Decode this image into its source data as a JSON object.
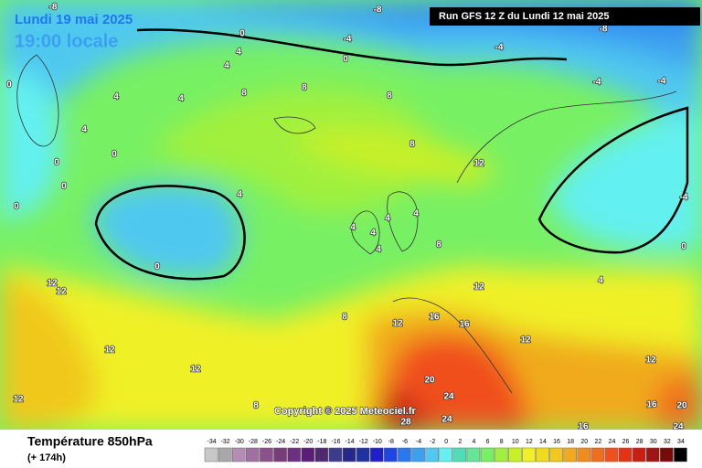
{
  "header": {
    "date": "Lundi 19 mai 2025",
    "time": "19:00 locale",
    "run": "Run GFS 12 Z du Lundi 12 mai 2025"
  },
  "copyright": "Copyright © 2025 Meteociel.fr",
  "footer": {
    "title": "Température 850hPa",
    "lead": "(+ 174h)"
  },
  "legend": {
    "values": [
      -34,
      -32,
      -30,
      -28,
      -26,
      -24,
      -22,
      -20,
      -18,
      -16,
      -14,
      -12,
      -10,
      -8,
      -6,
      -4,
      -2,
      0,
      2,
      4,
      6,
      8,
      10,
      12,
      14,
      16,
      18,
      20,
      22,
      24,
      26,
      28,
      30,
      32,
      34
    ],
    "colors": [
      "#c8c8c8",
      "#a8a8a8",
      "#b48cb4",
      "#a070a0",
      "#8c508c",
      "#783c78",
      "#6e2e82",
      "#5a1e78",
      "#50286e",
      "#3c3c8c",
      "#28288c",
      "#1e32a0",
      "#1e1ecc",
      "#1e46e6",
      "#2878f0",
      "#3ca0f0",
      "#50c8f0",
      "#64f0f0",
      "#50dcb4",
      "#64e696",
      "#78f064",
      "#a0f03c",
      "#c8f028",
      "#f0f028",
      "#f0dc1e",
      "#f0c81e",
      "#f0aa1e",
      "#f08c1e",
      "#f06e1e",
      "#f0501e",
      "#e63214",
      "#c81e14",
      "#a01414",
      "#780a0a",
      "#000000"
    ]
  },
  "contour_labels": [
    -8,
    -8,
    -8,
    -4,
    -4,
    -4,
    -4,
    -4,
    0,
    0,
    0,
    0,
    0,
    0,
    0,
    0,
    0,
    4,
    4,
    4,
    4,
    4,
    4,
    4,
    4,
    4,
    4,
    4,
    4,
    8,
    8,
    8,
    8,
    8,
    8,
    8,
    12,
    12,
    12,
    12,
    12,
    12,
    12,
    12,
    12,
    16,
    16,
    16,
    16,
    12,
    20,
    24,
    24,
    28,
    20,
    24
  ]
}
